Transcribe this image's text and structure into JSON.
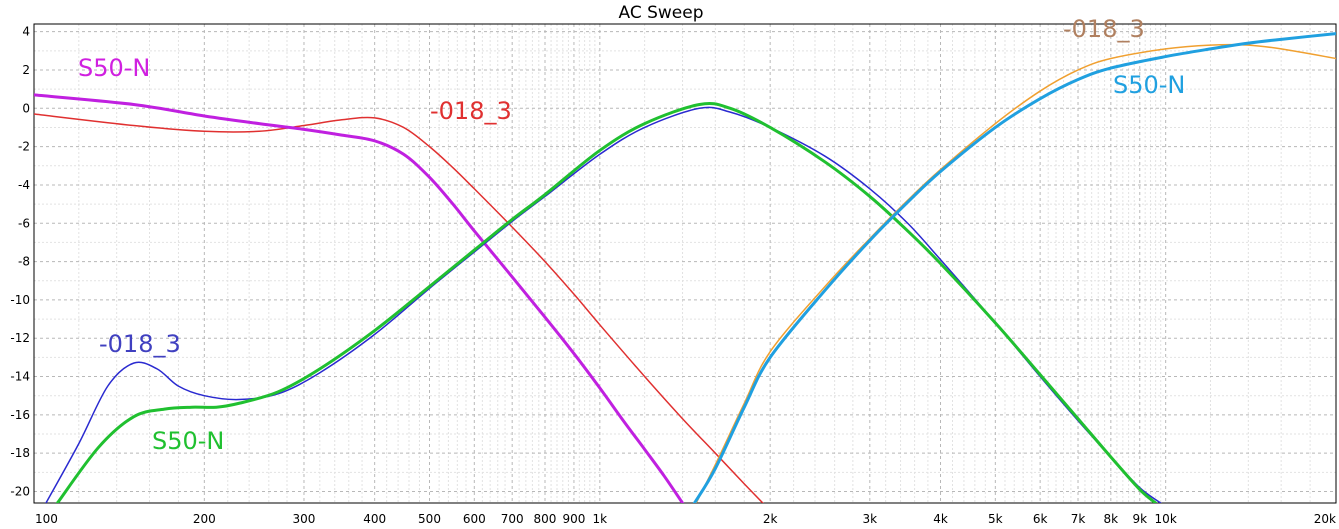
{
  "chart_data": {
    "type": "line",
    "title": "AC Sweep",
    "xscale": "log",
    "xlim": [
      100,
      20000
    ],
    "ylim": [
      -20.6,
      4.4
    ],
    "grid": true,
    "x_ticks": [
      {
        "v": 100,
        "label": "100"
      },
      {
        "v": 200,
        "label": "200"
      },
      {
        "v": 300,
        "label": "300"
      },
      {
        "v": 400,
        "label": "400"
      },
      {
        "v": 500,
        "label": "500"
      },
      {
        "v": 600,
        "label": "600"
      },
      {
        "v": 700,
        "label": "700"
      },
      {
        "v": 800,
        "label": "800"
      },
      {
        "v": 900,
        "label": "900"
      },
      {
        "v": 1000,
        "label": "1k"
      },
      {
        "v": 2000,
        "label": "2k"
      },
      {
        "v": 3000,
        "label": "3k"
      },
      {
        "v": 4000,
        "label": "4k"
      },
      {
        "v": 5000,
        "label": "5k"
      },
      {
        "v": 6000,
        "label": "6k"
      },
      {
        "v": 7000,
        "label": "7k"
      },
      {
        "v": 8000,
        "label": "8k"
      },
      {
        "v": 9000,
        "label": "9k"
      },
      {
        "v": 10000,
        "label": "10k"
      },
      {
        "v": 20000,
        "label": "20k"
      }
    ],
    "y_ticks": [
      {
        "v": 4,
        "label": "4"
      },
      {
        "v": 2,
        "label": "2"
      },
      {
        "v": 0,
        "label": "0"
      },
      {
        "v": -2,
        "label": "-2"
      },
      {
        "v": -4,
        "label": "-4"
      },
      {
        "v": -6,
        "label": "-6"
      },
      {
        "v": -8,
        "label": "-8"
      },
      {
        "v": -10,
        "label": "-10"
      },
      {
        "v": -12,
        "label": "-12"
      },
      {
        "v": -14,
        "label": "-14"
      },
      {
        "v": -16,
        "label": "-16"
      },
      {
        "v": -18,
        "label": "-18"
      },
      {
        "v": -20,
        "label": "-20"
      }
    ],
    "series": [
      {
        "name": "-018_3",
        "color": "#e03030",
        "width": 1.5,
        "x": [
          100,
          150,
          200,
          250,
          300,
          350,
          400,
          450,
          500,
          550,
          600,
          700,
          800,
          900,
          1000,
          1200,
          1400,
          1600,
          1800,
          2000
        ],
        "y": [
          -0.3,
          -0.9,
          -1.2,
          -1.2,
          -0.9,
          -0.6,
          -0.5,
          -1.0,
          -2.0,
          -3.1,
          -4.2,
          -6.2,
          -8.0,
          -9.7,
          -11.3,
          -14.0,
          -16.2,
          -18.0,
          -19.6,
          -21.0
        ]
      },
      {
        "name": "S50-N",
        "color": "#c020e0",
        "width": 3,
        "x": [
          100,
          150,
          200,
          250,
          300,
          350,
          400,
          450,
          500,
          550,
          600,
          700,
          800,
          900,
          1000,
          1100,
          1200,
          1300,
          1400
        ],
        "y": [
          0.7,
          0.2,
          -0.4,
          -0.8,
          -1.1,
          -1.4,
          -1.7,
          -2.4,
          -3.6,
          -5.0,
          -6.4,
          -8.8,
          -10.9,
          -12.8,
          -14.6,
          -16.3,
          -17.8,
          -19.2,
          -20.6
        ]
      },
      {
        "name": "-018_3",
        "color": "#2a2ad0",
        "width": 1.5,
        "x": [
          105,
          120,
          135,
          150,
          165,
          180,
          200,
          230,
          270,
          320,
          400,
          500,
          600,
          700,
          800,
          1000,
          1200,
          1500,
          1700,
          2000,
          2500,
          3000,
          3500,
          4000,
          5000,
          6000,
          7000,
          8000,
          9000,
          9800
        ],
        "y": [
          -20.6,
          -17.5,
          -14.5,
          -13.3,
          -13.6,
          -14.5,
          -15.0,
          -15.2,
          -14.9,
          -13.8,
          -11.8,
          -9.4,
          -7.5,
          -5.9,
          -4.6,
          -2.4,
          -1.0,
          0.0,
          -0.2,
          -1.0,
          -2.5,
          -4.2,
          -6.0,
          -7.9,
          -11.2,
          -14.0,
          -16.3,
          -18.2,
          -19.8,
          -20.6
        ]
      },
      {
        "name": "S50-N",
        "color": "#20c030",
        "width": 3,
        "x": [
          110,
          130,
          150,
          170,
          190,
          210,
          230,
          270,
          320,
          400,
          500,
          600,
          700,
          800,
          1000,
          1200,
          1500,
          1700,
          2000,
          2500,
          3000,
          3500,
          4000,
          5000,
          6000,
          7000,
          8000,
          9000,
          9600
        ],
        "y": [
          -20.6,
          -17.7,
          -16.1,
          -15.7,
          -15.6,
          -15.6,
          -15.4,
          -14.8,
          -13.6,
          -11.6,
          -9.3,
          -7.4,
          -5.8,
          -4.5,
          -2.2,
          -0.8,
          0.2,
          0.0,
          -1.0,
          -2.8,
          -4.6,
          -6.4,
          -8.1,
          -11.2,
          -13.9,
          -16.2,
          -18.2,
          -19.9,
          -20.6
        ]
      },
      {
        "name": "-018_3",
        "color": "#f0a030",
        "width": 1.5,
        "x": [
          1480,
          1600,
          1800,
          2000,
          2500,
          3000,
          3500,
          4000,
          5000,
          6000,
          7000,
          8000,
          10000,
          12000,
          14000,
          16000,
          20000
        ],
        "y": [
          -20.6,
          -18.6,
          -15.4,
          -12.7,
          -9.3,
          -6.8,
          -4.8,
          -3.2,
          -0.8,
          0.9,
          2.0,
          2.6,
          3.1,
          3.3,
          3.3,
          3.1,
          2.6
        ]
      },
      {
        "name": "S50-N",
        "color": "#20a0e0",
        "width": 3,
        "x": [
          1470,
          1600,
          1800,
          2000,
          2500,
          3000,
          3500,
          4000,
          5000,
          6000,
          7000,
          8000,
          10000,
          12000,
          14000,
          16000,
          20000
        ],
        "y": [
          -20.6,
          -18.8,
          -15.6,
          -13.0,
          -9.5,
          -6.9,
          -4.9,
          -3.3,
          -1.0,
          0.5,
          1.5,
          2.1,
          2.7,
          3.1,
          3.4,
          3.6,
          3.9
        ]
      }
    ],
    "annotations": [
      {
        "text": "S50-N",
        "color": "#d020e0"
      },
      {
        "text": "-018_3",
        "color": "#e03030"
      },
      {
        "text": "-018_3",
        "color": "#4040c0"
      },
      {
        "text": "S50-N",
        "color": "#20c030"
      },
      {
        "text": "-018_3",
        "color": "#b08060"
      },
      {
        "text": "S50-N",
        "color": "#20a0e0"
      }
    ]
  }
}
